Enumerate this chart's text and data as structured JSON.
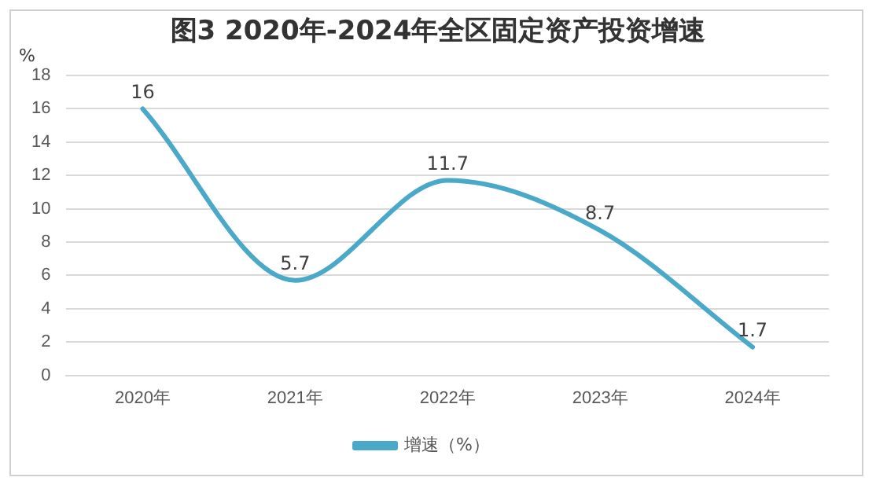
{
  "chart_data": {
    "type": "line",
    "title": "图3  2020年-2024年全区固定资产投资增速",
    "ylabel": "%",
    "categories": [
      "2020年",
      "2021年",
      "2022年",
      "2023年",
      "2024年"
    ],
    "series": [
      {
        "name": "增速（%）",
        "color": "#4aa8c8",
        "values": [
          16,
          5.7,
          11.7,
          8.7,
          1.7
        ]
      }
    ],
    "ylim": [
      0,
      18
    ],
    "yticks": [
      0,
      2,
      4,
      6,
      8,
      10,
      12,
      14,
      16,
      18
    ],
    "grid": "y",
    "legend": "bottom",
    "marker": "none",
    "line_style": "solid",
    "data_labels": true
  }
}
